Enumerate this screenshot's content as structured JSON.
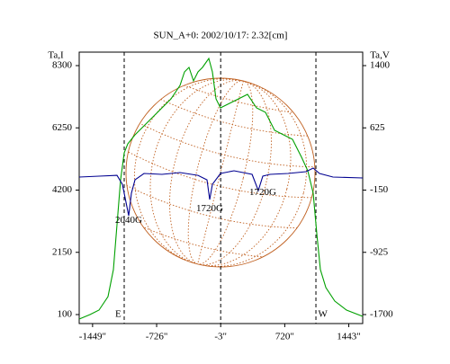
{
  "chart_data": {
    "type": "line",
    "title": "SUN_A+0: 2002/10/17: 2.32[cm]",
    "y_label": "Ta,I",
    "y2_label": "Ta,V",
    "xlim": [
      -1600,
      1600
    ],
    "ylim": [
      -196,
      8744
    ],
    "y2lim": [
      -1812,
      1568
    ],
    "xticks": [
      {
        "value": -1449,
        "label": "-1449\""
      },
      {
        "value": -726,
        "label": "-726\""
      },
      {
        "value": -3,
        "label": "-3\""
      },
      {
        "value": 720,
        "label": "720\""
      },
      {
        "value": 1443,
        "label": "1443\""
      }
    ],
    "yticks": [
      100,
      2150,
      4200,
      6250,
      8300
    ],
    "y2ticks": [
      -1700,
      -925,
      -150,
      625,
      1400
    ],
    "vlines": [
      -1092,
      -3,
      1072
    ],
    "series": [
      {
        "name": "Ta,I",
        "color": "#00a000",
        "x": [
          -1600,
          -1478,
          -1377,
          -1275,
          -1214,
          -1173,
          -1133,
          -1092,
          -1051,
          -970,
          -869,
          -767,
          -665,
          -564,
          -462,
          -411,
          -361,
          -310,
          -259,
          -208,
          -137,
          -96,
          -56,
          -5,
          97,
          198,
          300,
          401,
          503,
          605,
          706,
          808,
          910,
          980,
          1041,
          1082,
          1123,
          1184,
          1285,
          1417,
          1600
        ],
        "values": [
          -48,
          100,
          248,
          692,
          1580,
          3060,
          4540,
          5428,
          5724,
          6020,
          6316,
          6612,
          6908,
          7204,
          7648,
          8092,
          8240,
          7796,
          8092,
          8240,
          8536,
          8092,
          7204,
          6908,
          7056,
          7204,
          7352,
          6908,
          6760,
          6168,
          6020,
          5872,
          5280,
          4836,
          4096,
          2764,
          1580,
          988,
          544,
          248,
          41
        ]
      },
      {
        "name": "Ta,V",
        "color": "#000090",
        "axis": "y2",
        "x": [
          -1600,
          -1377,
          -1173,
          -1112,
          -1072,
          -1041,
          -1011,
          -970,
          -869,
          -665,
          -462,
          -259,
          -157,
          -127,
          -96,
          -5,
          147,
          351,
          422,
          472,
          554,
          757,
          960,
          1041,
          1112,
          1265,
          1600
        ],
        "values": [
          12,
          23,
          34,
          -78,
          -301,
          -469,
          -189,
          -22,
          57,
          46,
          68,
          34,
          -22,
          -268,
          -78,
          57,
          91,
          46,
          -156,
          23,
          46,
          57,
          79,
          124,
          57,
          12,
          1
        ]
      }
    ],
    "annotations": [
      {
        "text": "2040G",
        "x": -1041,
        "y": 3200
      },
      {
        "text": "1720G",
        "x": -127,
        "y": 3580
      },
      {
        "text": "1720G",
        "x": 472,
        "y": 4110
      },
      {
        "text": "E",
        "x": -1160,
        "y": 100
      },
      {
        "text": "W",
        "x": 1150,
        "y": 100
      }
    ]
  }
}
